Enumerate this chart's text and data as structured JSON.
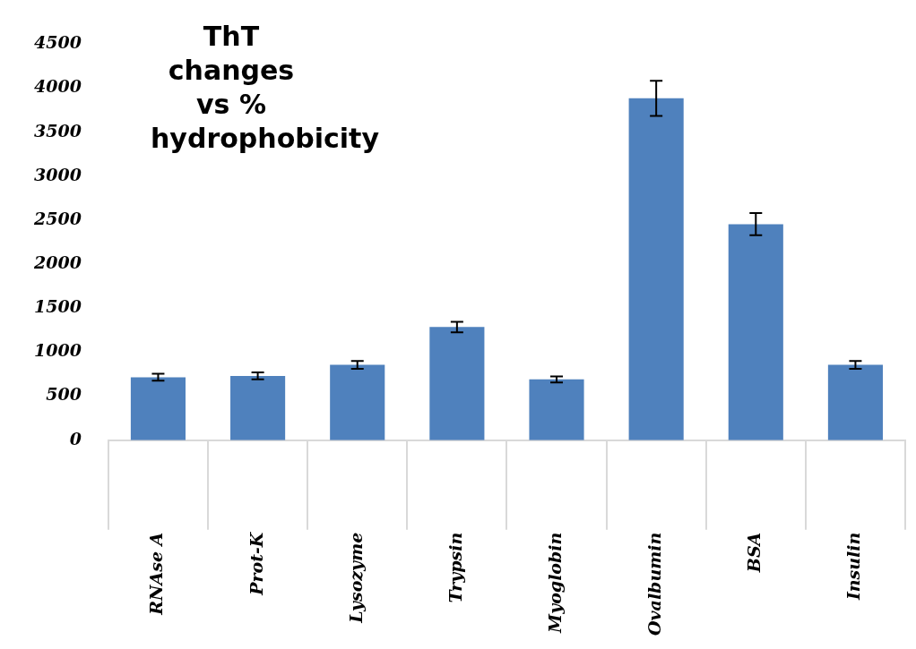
{
  "chart_data": {
    "type": "bar",
    "title": "ThT changes vs % hydrophobicity",
    "categories": [
      "RNAse A",
      "Prot-K",
      "Lysozyme",
      "Trypsin",
      "Myoglobin",
      "Ovalbumin",
      "BSA",
      "Insulin"
    ],
    "values": [
      715,
      730,
      855,
      1285,
      690,
      3885,
      2455,
      855
    ],
    "errors": [
      40,
      40,
      45,
      60,
      35,
      200,
      125,
      45
    ],
    "color": "#4f81bd",
    "ylim": [
      0,
      4500
    ],
    "yticks": [
      0,
      500,
      1000,
      1500,
      2000,
      2500,
      3000,
      3500,
      4000,
      4500
    ],
    "grid": false,
    "legend": false
  }
}
